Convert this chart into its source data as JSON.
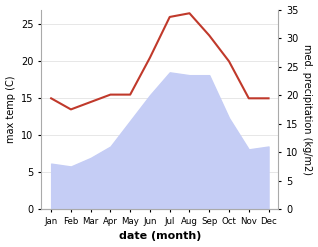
{
  "months": [
    "Jan",
    "Feb",
    "Mar",
    "Apr",
    "May",
    "Jun",
    "Jul",
    "Aug",
    "Sep",
    "Oct",
    "Nov",
    "Dec"
  ],
  "x": [
    1,
    2,
    3,
    4,
    5,
    6,
    7,
    8,
    9,
    10,
    11,
    12
  ],
  "temp": [
    15.0,
    13.5,
    14.5,
    15.5,
    15.5,
    20.5,
    26.0,
    26.5,
    23.5,
    20.0,
    15.0,
    15.0
  ],
  "precip": [
    8.0,
    7.5,
    9.0,
    11.0,
    15.5,
    20.0,
    24.0,
    23.5,
    23.5,
    16.0,
    10.5,
    11.0
  ],
  "temp_color": "#c0392b",
  "precip_fill_color": "#c5cdf5",
  "ylabel_left": "max temp (C)",
  "ylabel_right": "med. precipitation (kg/m2)",
  "xlabel": "date (month)",
  "ylim_left": [
    0,
    27
  ],
  "ylim_right": [
    0,
    35
  ],
  "yticks_left": [
    0,
    5,
    10,
    15,
    20,
    25
  ],
  "yticks_right": [
    0,
    5,
    10,
    15,
    20,
    25,
    30,
    35
  ],
  "spine_color": "#aaaaaa",
  "grid_color": "#dddddd"
}
